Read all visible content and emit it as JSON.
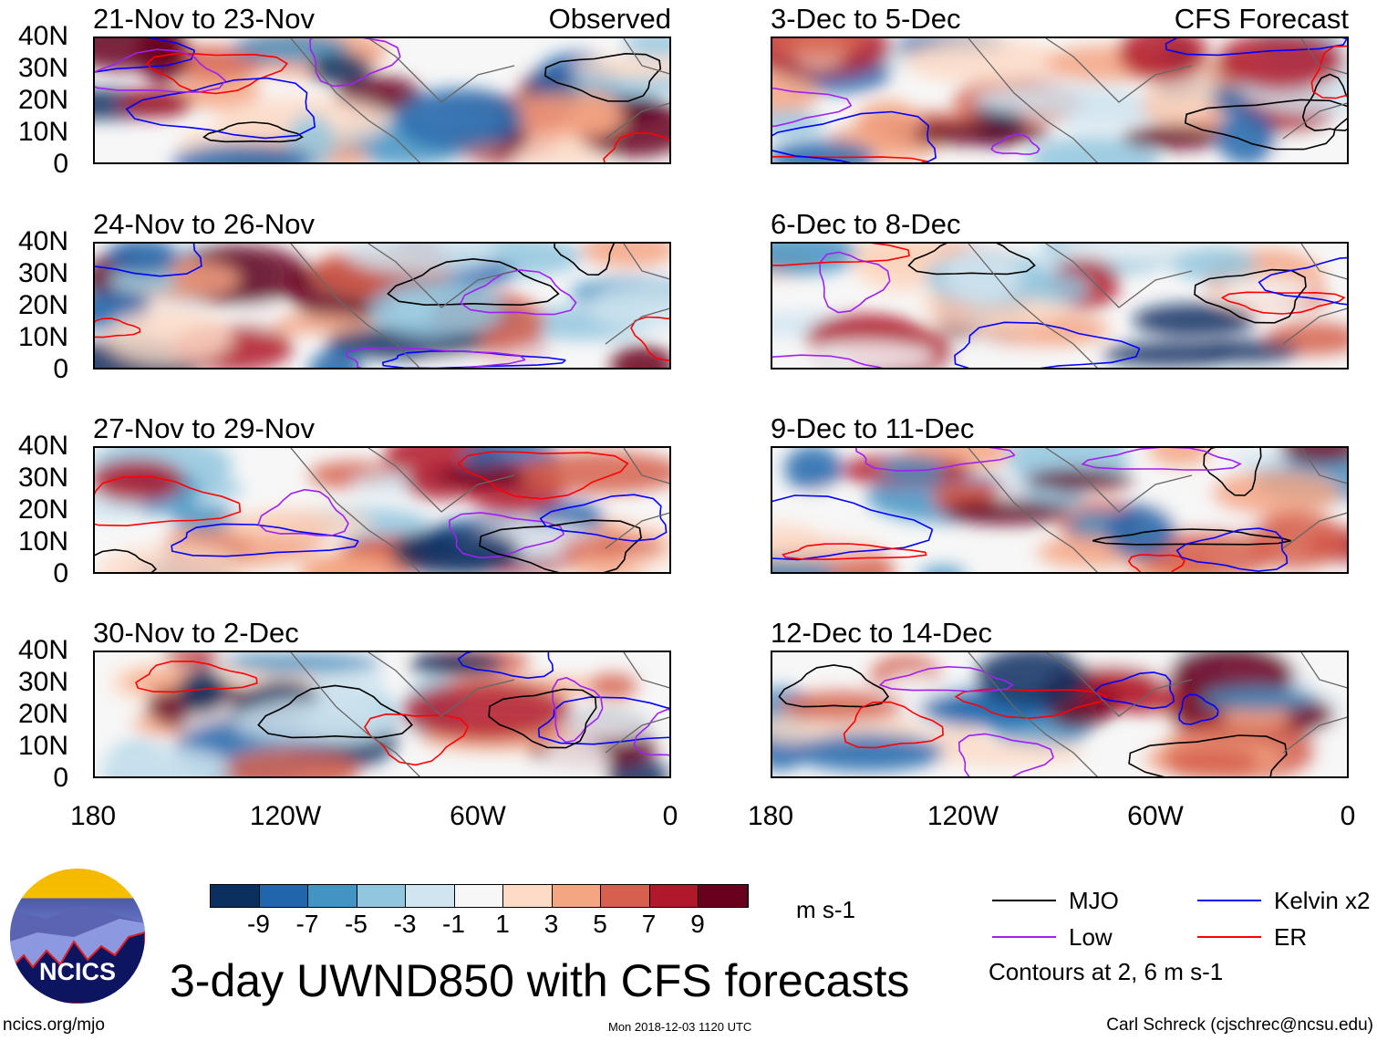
{
  "panels": [
    {
      "title": "21-Nov to 23-Nov",
      "right_title": "Observed",
      "seed": 1
    },
    {
      "title": "3-Dec to 5-Dec",
      "right_title": "CFS Forecast",
      "seed": 2
    },
    {
      "title": "24-Nov to 26-Nov",
      "right_title": "",
      "seed": 3
    },
    {
      "title": "6-Dec to 8-Dec",
      "right_title": "",
      "seed": 4
    },
    {
      "title": "27-Nov to 29-Nov",
      "right_title": "",
      "seed": 5
    },
    {
      "title": "9-Dec to 11-Dec",
      "right_title": "",
      "seed": 6
    },
    {
      "title": "30-Nov to 2-Dec",
      "right_title": "",
      "seed": 7
    },
    {
      "title": "12-Dec to 14-Dec",
      "right_title": "",
      "seed": 8
    }
  ],
  "lat_labels": [
    "40N",
    "30N",
    "20N",
    "10N",
    "0"
  ],
  "lon_labels": [
    "180",
    "120W",
    "60W",
    "0"
  ],
  "colorbar": {
    "colors": [
      "#0a3060",
      "#2166ac",
      "#4393c3",
      "#92c5de",
      "#d1e5f0",
      "#f7f7f7",
      "#fddbc7",
      "#f4a582",
      "#d6604d",
      "#b2182b",
      "#67001f"
    ],
    "labels": [
      "-9",
      "-7",
      "-5",
      "-3",
      "-1",
      "1",
      "3",
      "5",
      "7",
      "9"
    ],
    "units": "m s-1"
  },
  "title": "3-day UWND850 with CFS forecasts",
  "legend": {
    "items": [
      {
        "label": "MJO",
        "color": "#000000"
      },
      {
        "label": "Kelvin x2",
        "color": "#0000ff"
      },
      {
        "label": "Low",
        "color": "#a020f0"
      },
      {
        "label": "ER",
        "color": "#ff0000"
      }
    ],
    "note": "Contours at 2, 6 m s-1"
  },
  "logo_text": "NCICS",
  "footer": {
    "left": "ncics.org/mjo",
    "center": "Mon 2018-12-03 1120 UTC",
    "right": "Carl Schreck (cjschrec@ncsu.edu)"
  }
}
